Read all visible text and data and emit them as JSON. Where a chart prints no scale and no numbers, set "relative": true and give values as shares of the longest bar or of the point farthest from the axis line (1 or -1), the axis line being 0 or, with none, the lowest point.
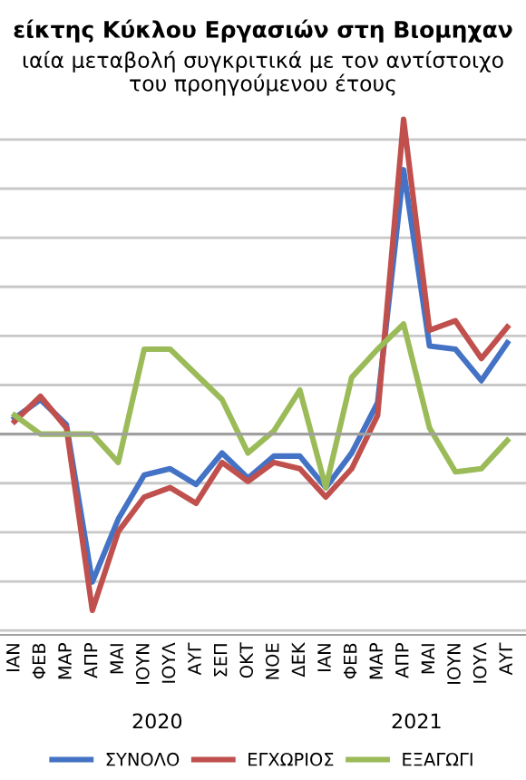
{
  "chart_data": {
    "type": "line",
    "title": "είκτης Κύκλου Εργασιών στη Βιομηχαν",
    "subtitle": "ιαία μεταβολή συγκριτικά με τον αντίστοιχο\nτου προηγούμενου έτους",
    "relative": true,
    "categories": [
      "ΙΑΝ",
      "ΦΕΒ",
      "ΜΑΡ",
      "ΑΠΡ",
      "ΜΑΙ",
      "ΙΟΥΝ",
      "ΙΟΥΛ",
      "ΑΥΓ",
      "ΣΕΠ",
      "ΟΚΤ",
      "ΝΟΕ",
      "ΔΕΚ",
      "ΙΑΝ",
      "ΦΕΒ",
      "ΜΑΡ",
      "ΑΠΡ",
      "ΜΑΙ",
      "ΙΟΥΝ",
      "ΙΟΥΛ",
      "ΑΥΓ"
    ],
    "series": [
      {
        "name": "ΣΥΝΟΛΟ",
        "color": "#4472c4",
        "values": [
          0.05,
          0.11,
          0.03,
          -0.47,
          -0.27,
          -0.13,
          -0.11,
          -0.16,
          -0.06,
          -0.14,
          -0.07,
          -0.07,
          -0.17,
          -0.06,
          0.1,
          0.84,
          0.28,
          0.27,
          0.17,
          0.29
        ]
      },
      {
        "name": "ΕΓΧΩΡΙΟΣ",
        "color": "#c0504d",
        "values": [
          0.04,
          0.12,
          0.02,
          -0.56,
          -0.31,
          -0.2,
          -0.17,
          -0.22,
          -0.09,
          -0.15,
          -0.09,
          -0.11,
          -0.2,
          -0.11,
          0.06,
          1,
          0.33,
          0.36,
          0.24,
          0.34
        ]
      },
      {
        "name": "ΕΞΑΓΩΓΙ",
        "color": "#9bbb59",
        "values": [
          0.06,
          0,
          0,
          0,
          -0.09,
          0.27,
          0.27,
          0.19,
          0.11,
          -0.06,
          0.01,
          0.14,
          -0.17,
          0.18,
          0.27,
          0.35,
          0.02,
          -0.12,
          -0.11,
          -0.02
        ]
      }
    ],
    "annotations": [
      "2020",
      "2021"
    ],
    "grid": "y",
    "legend": "bottom",
    "marker": "none",
    "line_style": "solid"
  }
}
